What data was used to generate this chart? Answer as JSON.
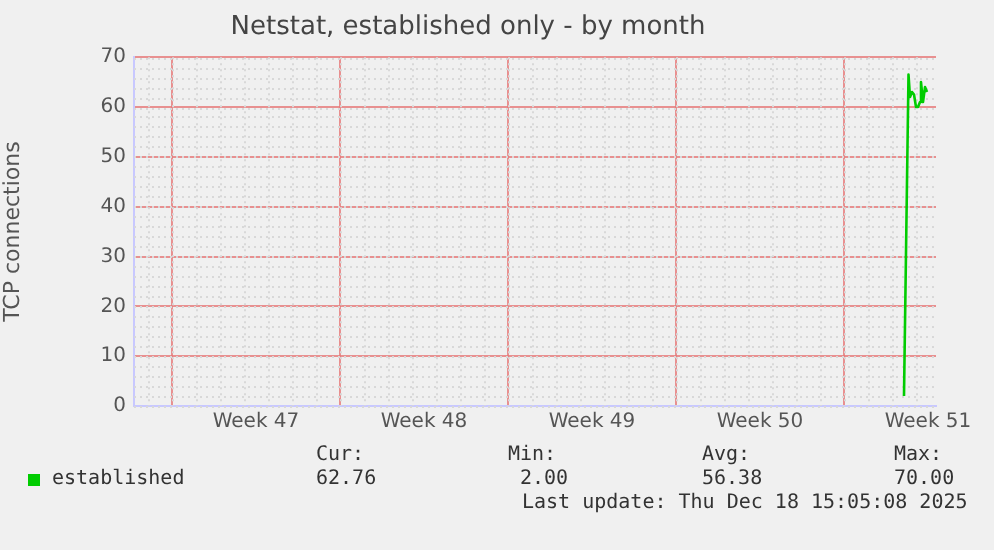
{
  "chart_data": {
    "type": "line",
    "title": "Netstat, established only - by month",
    "ylabel": "TCP connections",
    "x": [
      "2025-12-17T12:00",
      "2025-12-17T16:30",
      "2025-12-17T18:00",
      "2025-12-17T20:00",
      "2025-12-17T22:00",
      "2025-12-18T00:00",
      "2025-12-18T02:00",
      "2025-12-18T04:00",
      "2025-12-18T05:00",
      "2025-12-18T07:00",
      "2025-12-18T09:00",
      "2025-12-18T11:00"
    ],
    "series": [
      {
        "name": "established",
        "color": "#00cc00",
        "values": [
          2,
          66.5,
          62,
          63,
          62.5,
          60,
          60,
          61,
          65,
          61,
          64,
          63
        ]
      }
    ],
    "xlim": [
      "2025-11-15T10:00",
      "2025-12-18T20:00"
    ],
    "xticks": [
      {
        "value": "2025-11-17",
        "label": null
      },
      {
        "value": "2025-11-20T12:00",
        "label": "Week 47"
      },
      {
        "value": "2025-11-24",
        "label": null
      },
      {
        "value": "2025-11-27T12:00",
        "label": "Week 48"
      },
      {
        "value": "2025-12-01",
        "label": null
      },
      {
        "value": "2025-12-04T12:00",
        "label": "Week 49"
      },
      {
        "value": "2025-12-08",
        "label": null
      },
      {
        "value": "2025-12-11T12:00",
        "label": "Week 50"
      },
      {
        "value": "2025-12-15",
        "label": null
      },
      {
        "value": "2025-12-18T12:00",
        "label": "Week 51"
      }
    ],
    "ylim": [
      0,
      70
    ],
    "yticks": [
      0,
      10,
      20,
      30,
      40,
      50,
      60,
      70
    ],
    "grid": true,
    "legend": "bottom",
    "marker": "none",
    "line_style": "solid",
    "annotations": [
      "Cur:",
      "Min:",
      "Avg:",
      "Max:",
      "62.76",
      "2.00",
      "56.38",
      "70.00",
      "Last update: Thu Dec 18 15:05:08 2025"
    ]
  }
}
